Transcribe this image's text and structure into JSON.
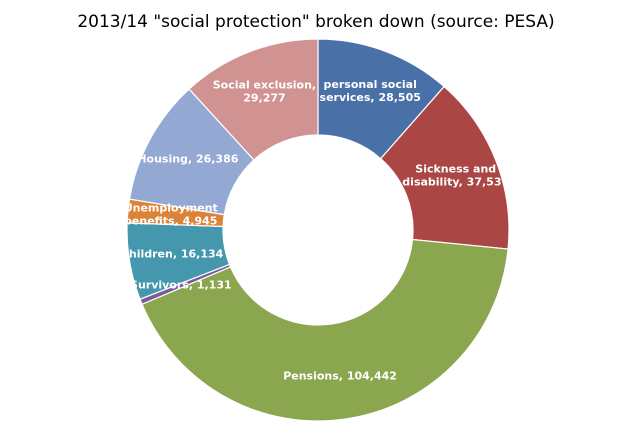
{
  "chart_data": {
    "type": "donut",
    "title": "2013/14 \"social protection\" broken down (source: PESA)",
    "values": [
      28505,
      37537,
      104442,
      1131,
      16134,
      4945,
      26386,
      29277
    ],
    "value_labels": [
      "personal social\nservices, 28,505",
      "Sickness and\ndisability, 37,537",
      "Pensions, 104,442",
      "Survivors, 1,131",
      "Children, 16,134",
      "Unemployment\nbenefits, 4,945",
      "Housing, 26,386",
      "Social exclusion,\n29,277"
    ],
    "colors": [
      "#4a70a8",
      "#aa4644",
      "#8aa64e",
      "#7a5c9c",
      "#4597ad",
      "#db8339",
      "#93a8d2",
      "#d09392"
    ]
  }
}
